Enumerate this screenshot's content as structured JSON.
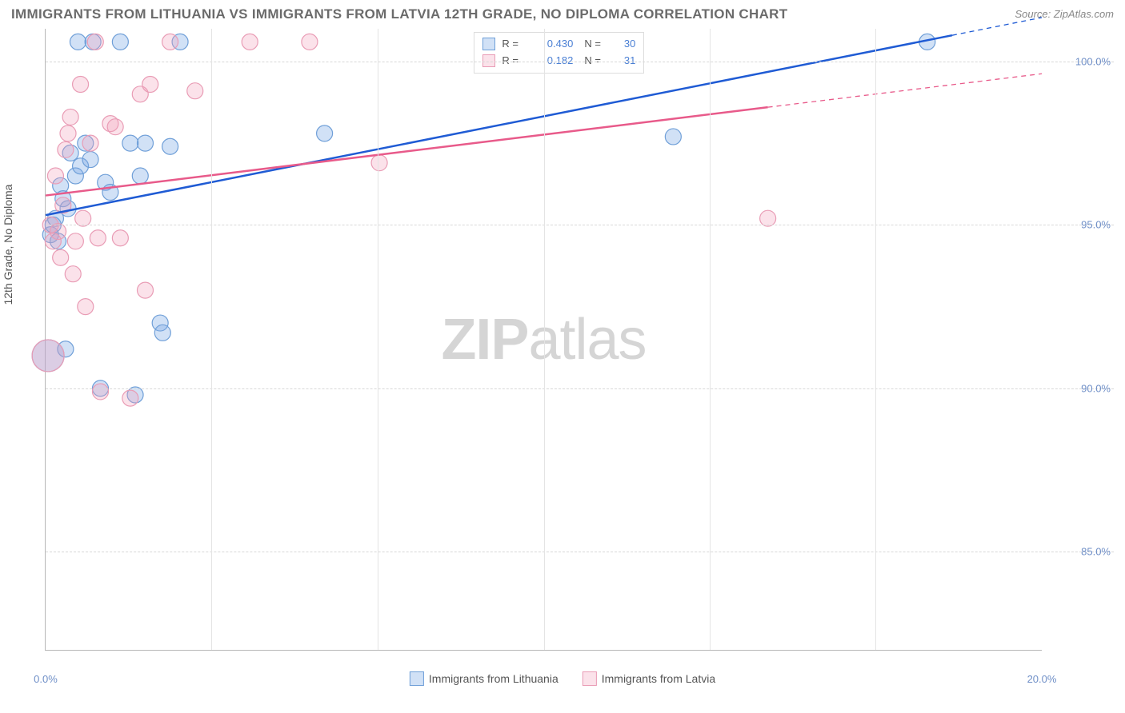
{
  "title": "IMMIGRANTS FROM LITHUANIA VS IMMIGRANTS FROM LATVIA 12TH GRADE, NO DIPLOMA CORRELATION CHART",
  "source": "Source: ZipAtlas.com",
  "watermark": {
    "bold": "ZIP",
    "rest": "atlas"
  },
  "chart": {
    "type": "scatter",
    "y_label": "12th Grade, No Diploma",
    "x_range": [
      0,
      20
    ],
    "y_range": [
      82,
      101
    ],
    "x_ticks": [
      {
        "v": 0,
        "label": "0.0%"
      },
      {
        "v": 20,
        "label": "20.0%"
      }
    ],
    "x_grid": [
      3.33,
      6.66,
      10,
      13.33,
      16.66
    ],
    "y_ticks": [
      {
        "v": 85,
        "label": "85.0%"
      },
      {
        "v": 90,
        "label": "90.0%"
      },
      {
        "v": 95,
        "label": "95.0%"
      },
      {
        "v": 100,
        "label": "100.0%"
      }
    ],
    "background_color": "#ffffff",
    "grid_color": "#d8d8d8",
    "axis_color": "#b8b8b8",
    "series": [
      {
        "name": "Immigrants from Lithuania",
        "color_fill": "rgba(122,170,230,0.35)",
        "color_stroke": "#6f9fd8",
        "color_solid": "#4a7fd4",
        "line_color": "#1f5bd4",
        "R": "0.430",
        "N": "30",
        "trend": {
          "x1": 0,
          "y1": 95.3,
          "x2": 18.2,
          "y2": 100.8,
          "dash_to_x": 20
        },
        "marker_r": 10,
        "points": [
          [
            0.1,
            94.7
          ],
          [
            0.15,
            95.0
          ],
          [
            0.2,
            95.2
          ],
          [
            0.25,
            94.5
          ],
          [
            0.3,
            96.2
          ],
          [
            0.35,
            95.8
          ],
          [
            0.4,
            91.2
          ],
          [
            0.45,
            95.5
          ],
          [
            0.5,
            97.2
          ],
          [
            0.6,
            96.5
          ],
          [
            0.65,
            100.6
          ],
          [
            0.7,
            96.8
          ],
          [
            0.8,
            97.5
          ],
          [
            0.9,
            97.0
          ],
          [
            0.95,
            100.6
          ],
          [
            1.1,
            90.0
          ],
          [
            1.2,
            96.3
          ],
          [
            1.3,
            96.0
          ],
          [
            1.5,
            100.6
          ],
          [
            1.7,
            97.5
          ],
          [
            1.8,
            89.8
          ],
          [
            1.9,
            96.5
          ],
          [
            2.0,
            97.5
          ],
          [
            2.3,
            92.0
          ],
          [
            2.35,
            91.7
          ],
          [
            2.5,
            97.4
          ],
          [
            2.7,
            100.6
          ],
          [
            5.6,
            97.8
          ],
          [
            12.6,
            97.7
          ],
          [
            17.7,
            100.6
          ]
        ],
        "big_point": {
          "x": 0.05,
          "y": 91.0,
          "r": 20
        }
      },
      {
        "name": "Immigrants from Latvia",
        "color_fill": "rgba(242,160,185,0.30)",
        "color_stroke": "#e99cb5",
        "color_solid": "#eb7fa3",
        "line_color": "#e85a8a",
        "R": "0.182",
        "N": "31",
        "trend": {
          "x1": 0,
          "y1": 95.9,
          "x2": 14.5,
          "y2": 98.6,
          "dash_to_x": 20
        },
        "marker_r": 10,
        "points": [
          [
            0.1,
            95.0
          ],
          [
            0.15,
            94.5
          ],
          [
            0.2,
            96.5
          ],
          [
            0.25,
            94.8
          ],
          [
            0.3,
            94.0
          ],
          [
            0.35,
            95.6
          ],
          [
            0.4,
            97.3
          ],
          [
            0.45,
            97.8
          ],
          [
            0.5,
            98.3
          ],
          [
            0.55,
            93.5
          ],
          [
            0.6,
            94.5
          ],
          [
            0.7,
            99.3
          ],
          [
            0.75,
            95.2
          ],
          [
            0.8,
            92.5
          ],
          [
            0.9,
            97.5
          ],
          [
            1.0,
            100.6
          ],
          [
            1.05,
            94.6
          ],
          [
            1.1,
            89.9
          ],
          [
            1.3,
            98.1
          ],
          [
            1.4,
            98.0
          ],
          [
            1.5,
            94.6
          ],
          [
            1.7,
            89.7
          ],
          [
            1.9,
            99.0
          ],
          [
            2.0,
            93.0
          ],
          [
            2.1,
            99.3
          ],
          [
            2.5,
            100.6
          ],
          [
            3.0,
            99.1
          ],
          [
            4.1,
            100.6
          ],
          [
            5.3,
            100.6
          ],
          [
            6.7,
            96.9
          ],
          [
            14.5,
            95.2
          ]
        ],
        "big_point": {
          "x": 0.05,
          "y": 91.0,
          "r": 20
        }
      }
    ]
  },
  "legend_bottom": [
    {
      "label": "Immigrants from Lithuania",
      "fill": "rgba(122,170,230,0.35)",
      "stroke": "#6f9fd8"
    },
    {
      "label": "Immigrants from Latvia",
      "fill": "rgba(242,160,185,0.30)",
      "stroke": "#e99cb5"
    }
  ]
}
